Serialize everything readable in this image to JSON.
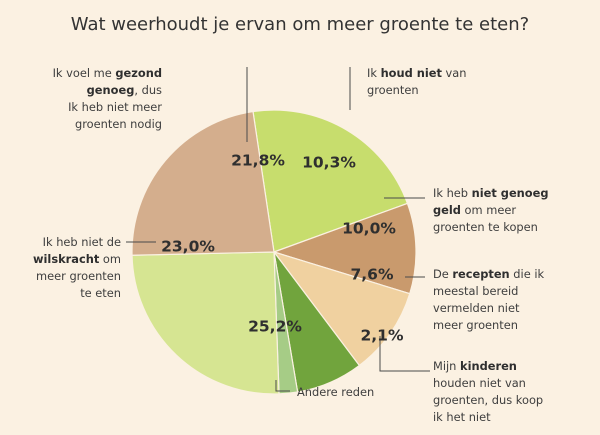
{
  "chart_data": {
    "type": "pie",
    "title": "Wat weerhoudt je ervan om meer groente te eten?",
    "slices": [
      {
        "value_label": "21,8%",
        "value": 21.8,
        "color": "#c7dd6d",
        "label_parts": [
          [
            {
              "t": "Ik voel me ",
              "b": false
            },
            {
              "t": "gezond",
              "b": true
            }
          ],
          [
            {
              "t": "genoeg",
              "b": true
            },
            {
              "t": ", dus",
              "b": false
            }
          ],
          [
            {
              "t": "Ik heb niet meer",
              "b": false
            }
          ],
          [
            {
              "t": "groenten nodig",
              "b": false
            }
          ]
        ]
      },
      {
        "value_label": "10,3%",
        "value": 10.3,
        "color": "#c99a6d",
        "label_parts": [
          [
            {
              "t": "Ik ",
              "b": false
            },
            {
              "t": "houd niet",
              "b": true
            },
            {
              "t": " van",
              "b": false
            }
          ],
          [
            {
              "t": "groenten",
              "b": false
            }
          ]
        ]
      },
      {
        "value_label": "10,0%",
        "value": 10.0,
        "color": "#f0d1a0",
        "label_parts": [
          [
            {
              "t": "Ik heb ",
              "b": false
            },
            {
              "t": "niet genoeg",
              "b": true
            }
          ],
          [
            {
              "t": "geld",
              "b": true
            },
            {
              "t": " om meer",
              "b": false
            }
          ],
          [
            {
              "t": "groenten te kopen",
              "b": false
            }
          ]
        ]
      },
      {
        "value_label": "7,6%",
        "value": 7.6,
        "color": "#71a43d",
        "label_parts": [
          [
            {
              "t": "De ",
              "b": false
            },
            {
              "t": "recepten",
              "b": true
            },
            {
              "t": " die ik",
              "b": false
            }
          ],
          [
            {
              "t": "meestal bereid",
              "b": false
            }
          ],
          [
            {
              "t": "vermelden niet",
              "b": false
            }
          ],
          [
            {
              "t": "meer groenten",
              "b": false
            }
          ]
        ]
      },
      {
        "value_label": "2,1%",
        "value": 2.1,
        "color": "#a6cc86",
        "label_parts": [
          [
            {
              "t": "Mijn ",
              "b": false
            },
            {
              "t": "kinderen",
              "b": true
            }
          ],
          [
            {
              "t": "houden niet van",
              "b": false
            }
          ],
          [
            {
              "t": "groenten, dus koop",
              "b": false
            }
          ],
          [
            {
              "t": "ik het niet",
              "b": false
            }
          ]
        ]
      },
      {
        "value_label": "25,2%",
        "value": 25.2,
        "color": "#d6e592",
        "label_parts": [
          [
            {
              "t": "Andere reden",
              "b": false
            }
          ]
        ]
      },
      {
        "value_label": "23,0%",
        "value": 23.0,
        "color": "#d4ae8d",
        "label_parts": [
          [
            {
              "t": "Ik heb niet de",
              "b": false
            }
          ],
          [
            {
              "t": "wilskracht",
              "b": true
            },
            {
              "t": " om",
              "b": false
            }
          ],
          [
            {
              "t": "meer groenten",
              "b": false
            }
          ],
          [
            {
              "t": "te eten",
              "b": false
            }
          ]
        ]
      }
    ]
  }
}
